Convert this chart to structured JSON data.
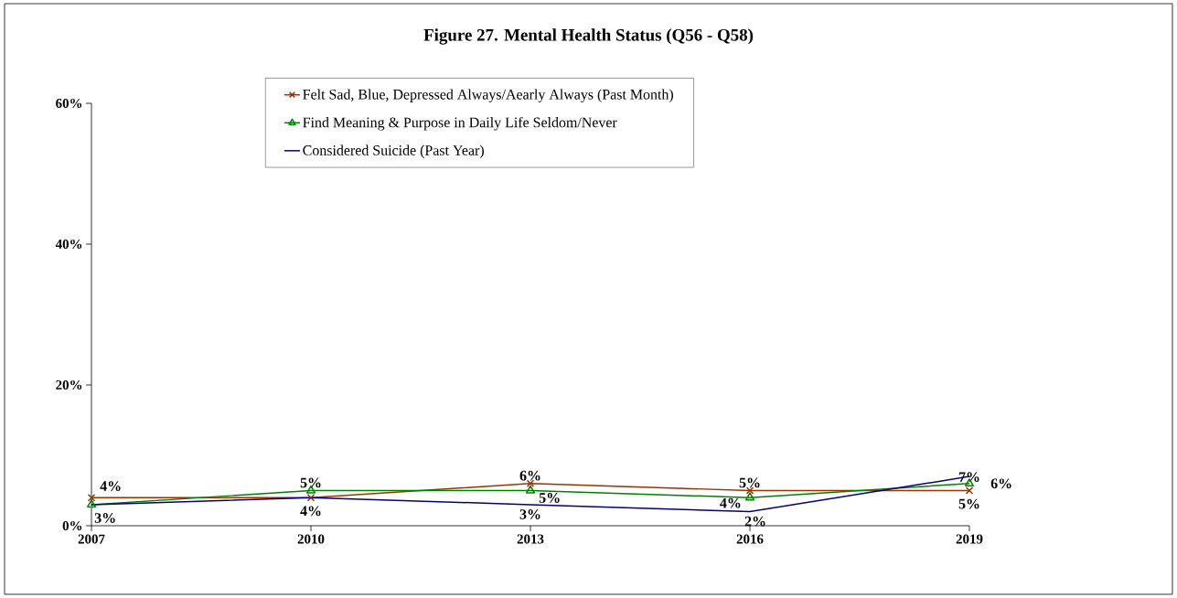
{
  "chart_data": {
    "type": "line",
    "title": "Figure 27.  Mental Health Status (Q56 - Q58)",
    "categories": [
      "2007",
      "2010",
      "2013",
      "2016",
      "2019"
    ],
    "series": [
      {
        "name": "Felt Sad, Blue, Depressed Always/Aearly Always (Past Month)",
        "color": "#993300",
        "marker": "cross",
        "values": [
          4,
          4,
          6,
          5,
          5
        ],
        "value_labels": [
          "4%",
          "4%",
          "6%",
          "5%",
          "5%"
        ]
      },
      {
        "name": "Find Meaning & Purpose in Daily Life Seldom/Never",
        "color": "#008000",
        "marker": "triangle",
        "values": [
          3,
          5,
          5,
          4,
          6
        ],
        "value_labels": [
          "3%",
          "5%",
          "5%",
          "4%",
          "6%"
        ]
      },
      {
        "name": "Considered Suicide (Past Year)",
        "color": "#000080",
        "marker": "none",
        "values": [
          3,
          4,
          3,
          2,
          7
        ],
        "value_labels": [
          null,
          null,
          "3%",
          "2%",
          "7%"
        ]
      }
    ],
    "ylim": [
      0,
      60
    ],
    "yticks": [
      {
        "value": 0,
        "label": "0%"
      },
      {
        "value": 20,
        "label": "20%"
      },
      {
        "value": 40,
        "label": "40%"
      },
      {
        "value": 60,
        "label": "60%"
      }
    ],
    "grid": false,
    "legend": "top"
  }
}
